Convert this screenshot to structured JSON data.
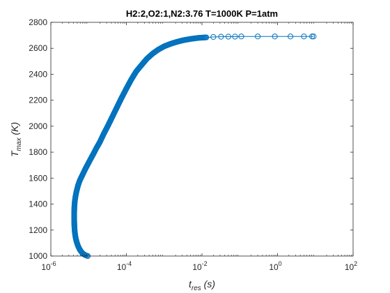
{
  "chart_data": {
    "type": "scatter",
    "title": "H2:2,O2:1,N2:3.76 T=1000K P=1atm",
    "xlabel": {
      "main": "t",
      "sub": "res",
      "unit": " (s)"
    },
    "ylabel": {
      "main": "T",
      "sub": "max",
      "unit": " (K)"
    },
    "x_scale": "log",
    "xlim": [
      1e-06,
      100
    ],
    "ylim": [
      1000,
      2800
    ],
    "x_ticks": [
      {
        "value": 1e-06,
        "base": "10",
        "exp": "-6"
      },
      {
        "value": 0.0001,
        "base": "10",
        "exp": "-4"
      },
      {
        "value": 0.01,
        "base": "10",
        "exp": "-2"
      },
      {
        "value": 1,
        "base": "10",
        "exp": "0"
      },
      {
        "value": 100,
        "base": "10",
        "exp": "2"
      }
    ],
    "y_ticks": [
      "1000",
      "1200",
      "1400",
      "1600",
      "1800",
      "2000",
      "2200",
      "2400",
      "2600",
      "2800"
    ],
    "grid": false,
    "marker": "open-circle",
    "line": true,
    "color": "#0072BD",
    "series": [
      {
        "x": [
          9.5e-06,
          9e-06,
          8.5e-06,
          7.8e-06,
          7e-06,
          6.3e-06,
          5.7e-06,
          5.2e-06,
          4.8e-06,
          4.5e-06,
          4.3e-06,
          4.2e-06,
          4.15e-06,
          4.15e-06,
          4.2e-06,
          4.3e-06,
          4.5e-06,
          4.8e-06,
          5.2e-06,
          5.8e-06,
          7e-06,
          8.5e-06,
          1.05e-05,
          1.3e-05,
          1.6e-05,
          2e-05,
          2.5e-05,
          3.2e-05,
          4.2e-05,
          5.5e-05,
          7.5e-05,
          0.0001,
          0.000135,
          0.00018,
          0.00025,
          0.00035,
          0.0005,
          0.0007,
          0.001,
          0.0015,
          0.0022,
          0.0032,
          0.005,
          0.008,
          0.013,
          0.02,
          0.032,
          0.05,
          0.075,
          0.11,
          0.3,
          0.85,
          2.2,
          5.0,
          8.2,
          9.0
        ],
        "y": [
          1000,
          1002,
          1005,
          1010,
          1020,
          1035,
          1055,
          1080,
          1110,
          1145,
          1185,
          1230,
          1280,
          1330,
          1380,
          1420,
          1460,
          1500,
          1540,
          1580,
          1630,
          1680,
          1730,
          1780,
          1830,
          1880,
          1940,
          2000,
          2070,
          2140,
          2220,
          2290,
          2360,
          2420,
          2470,
          2520,
          2560,
          2590,
          2615,
          2635,
          2650,
          2662,
          2672,
          2680,
          2684,
          2687,
          2689,
          2690,
          2690,
          2691,
          2691,
          2691,
          2691,
          2691,
          2691,
          2691
        ]
      }
    ]
  }
}
